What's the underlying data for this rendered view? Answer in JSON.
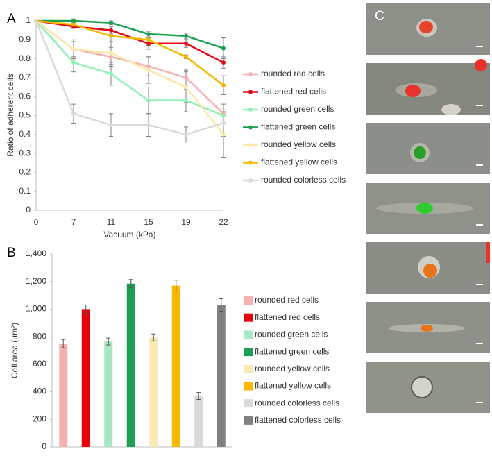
{
  "chart_data": [
    {
      "type": "line",
      "panel_label": "A",
      "y_label": "Ratio of adherent cells",
      "x_label": "Vacuum (kPa)",
      "categories": [
        "0",
        "7",
        "11",
        "15",
        "19",
        "22"
      ],
      "ylim": [
        0,
        1
      ],
      "yticks": [
        0,
        0.1,
        0.2,
        0.3,
        0.4,
        0.5,
        0.6,
        0.7,
        0.8,
        0.9,
        1
      ],
      "series": [
        {
          "name": "rounded red cells",
          "color": "#f5b1b1",
          "values": [
            1,
            0.85,
            0.81,
            0.76,
            0.7,
            0.51
          ],
          "errors": [
            null,
            0.04,
            0.05,
            0.05,
            0.04,
            0.05
          ]
        },
        {
          "name": "flattened red cells",
          "color": "#e30613",
          "values": [
            1,
            0.97,
            0.95,
            0.88,
            0.88,
            0.78
          ],
          "errors": [
            null,
            0.01,
            0.02,
            0.03,
            0.02,
            0.03
          ]
        },
        {
          "name": "rounded green cells",
          "color": "#8ef2b4",
          "values": [
            1,
            0.78,
            0.72,
            0.58,
            0.58,
            0.5
          ],
          "errors": [
            null,
            0.05,
            0.06,
            0.07,
            0.06,
            0.04
          ]
        },
        {
          "name": "flattened green cells",
          "color": "#1aa050",
          "values": [
            1,
            1,
            0.99,
            0.93,
            0.92,
            0.855
          ],
          "errors": [
            null,
            0.01,
            0.01,
            0.015,
            0.015,
            0.055
          ]
        },
        {
          "name": "rounded yellow cells",
          "color": "#fce8a8",
          "values": [
            1,
            0.85,
            0.83,
            0.74,
            0.65,
            0.4
          ],
          "errors": [
            null,
            0.05,
            0.06,
            0.07,
            0.08,
            0.12
          ]
        },
        {
          "name": "flattened yellow cells",
          "color": "#f5b800",
          "values": [
            1,
            0.98,
            0.92,
            0.9,
            0.81,
            0.66
          ],
          "errors": [
            null,
            0.01,
            0.03,
            0.03,
            0.01,
            0.05
          ]
        },
        {
          "name": "rounded colorless cells",
          "color": "#d9d9d9",
          "values": [
            1,
            0.51,
            0.45,
            0.45,
            0.4,
            0.46
          ],
          "errors": [
            null,
            0.05,
            0.06,
            0.06,
            0.04,
            0.07
          ]
        }
      ]
    },
    {
      "type": "bar",
      "panel_label": "B",
      "y_label": "Cell area (µm²)",
      "categories": [
        "rounded red cells",
        "flattened red cells",
        "rounded green cells",
        "flattened green cells",
        "rounded yellow cells",
        "flattened yellow cells",
        "rounded colorless cells",
        "flattened colorless cells"
      ],
      "values": [
        750,
        1000,
        765,
        1185,
        795,
        1170,
        370,
        1030
      ],
      "errors": [
        30,
        30,
        25,
        30,
        25,
        40,
        25,
        45
      ],
      "colors": [
        "#f5b1b1",
        "#e8000b",
        "#a8e6c4",
        "#1aa050",
        "#fde9b5",
        "#f8b800",
        "#d9d9d9",
        "#808080"
      ],
      "ylim": [
        0,
        1400
      ],
      "yticks": [
        0,
        200,
        400,
        600,
        800,
        {
          "value": 1000,
          "label": "1,000"
        },
        {
          "value": 1200,
          "label": "1,200"
        },
        {
          "value": 1400,
          "label": "1,400"
        }
      ]
    }
  ],
  "figure_c": {
    "panel_label": "C"
  }
}
